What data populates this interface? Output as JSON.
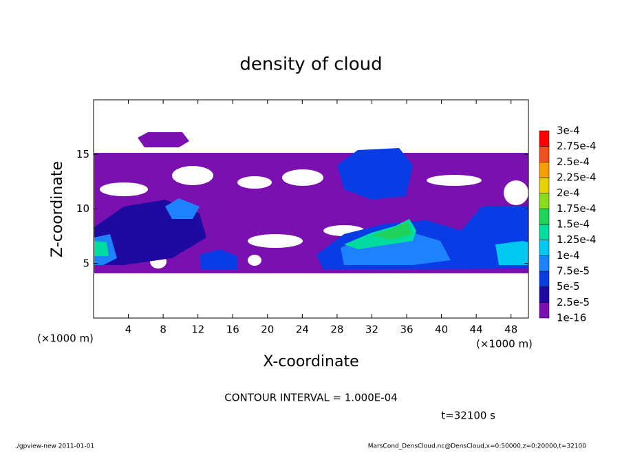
{
  "chart_data": {
    "type": "contour",
    "title": "density of cloud",
    "x_label": "X-coordinate",
    "y_label": "Z-coordinate",
    "x_unit": "(×1000 m)",
    "y_unit": "(×1000 m)",
    "xlim": [
      0,
      50
    ],
    "xticks": [
      4,
      8,
      12,
      16,
      20,
      24,
      28,
      32,
      36,
      40,
      44,
      48
    ],
    "ylim": [
      0,
      20
    ],
    "yticks": [
      5,
      10,
      15
    ],
    "colorbar": {
      "levels": [
        1e-16,
        {
          "value": 2.5e-05,
          "label": "2.5e-5"
        },
        {
          "value": 5e-05,
          "label": "5e-5"
        },
        {
          "value": 7.5e-05,
          "label": "7.5e-5"
        },
        {
          "value": 0.0001,
          "label": "1e-4"
        },
        {
          "value": 0.000125,
          "label": "1.25e-4"
        },
        {
          "value": 0.00015,
          "label": "1.5e-4"
        },
        {
          "value": 0.000175,
          "label": "1.75e-4"
        },
        {
          "value": 0.0002,
          "label": "2e-4"
        },
        {
          "value": 0.000225,
          "label": "2.25e-4"
        },
        {
          "value": 0.00025,
          "label": "2.5e-4"
        },
        {
          "value": 0.000275,
          "label": "2.75e-4"
        },
        {
          "value": 0.0003,
          "label": "3e-4"
        }
      ],
      "colors": [
        "#7a10b0",
        "#1e0aa0",
        "#0a3ce6",
        "#1e82ff",
        "#00c8f0",
        "#00dca0",
        "#1ed25a",
        "#8cdc1e",
        "#e6d200",
        "#f5a000",
        "#f05020",
        "#ff0000"
      ]
    },
    "contour_interval": "CONTOUR INTERVAL = 1.000E-04",
    "time": "t=32100 s",
    "footer_left": "./gpview-new  2011-01-01",
    "footer_right": "MarsCond_DensCloud.nc@DensCloud,x=0:50000,z=0:20000,t=32100"
  }
}
